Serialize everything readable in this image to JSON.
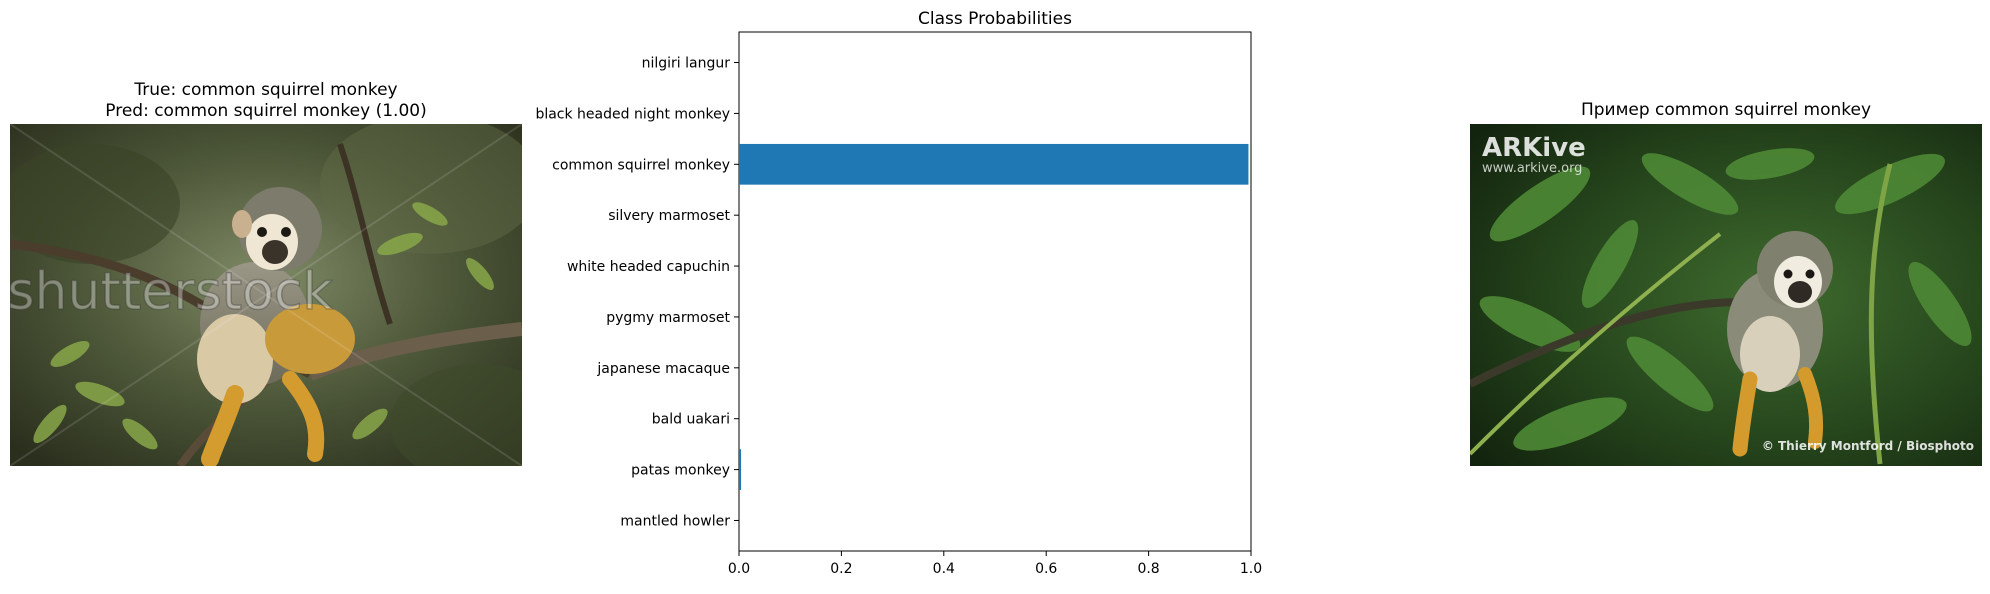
{
  "left_panel": {
    "title_line1": "True: common squirrel monkey",
    "title_line2": "Pred: common squirrel monkey (1.00)",
    "watermark": "shutterstock"
  },
  "right_panel": {
    "title": "Пример common squirrel monkey",
    "logo": "ARKive",
    "logo_url": "www.arkive.org",
    "credit": "© Thierry Montford / Biosphoto"
  },
  "chart_data": {
    "type": "bar",
    "orientation": "horizontal",
    "title": "Class Probabilities",
    "categories": [
      "nilgiri langur",
      "black headed night monkey",
      "common squirrel monkey",
      "silvery marmoset",
      "white headed capuchin",
      "pygmy marmoset",
      "japanese macaque",
      "bald uakari",
      "patas monkey",
      "mantled howler"
    ],
    "values": [
      0.0,
      0.0,
      0.995,
      0.0,
      0.0,
      0.0,
      0.0,
      0.0,
      0.004,
      0.0
    ],
    "xlim": [
      0,
      1.0
    ],
    "xticks": [
      "0.0",
      "0.2",
      "0.4",
      "0.6",
      "0.8",
      "1.0"
    ],
    "xlabel": "",
    "ylabel": "",
    "grid": false,
    "bar_color": "#1f77b4"
  }
}
